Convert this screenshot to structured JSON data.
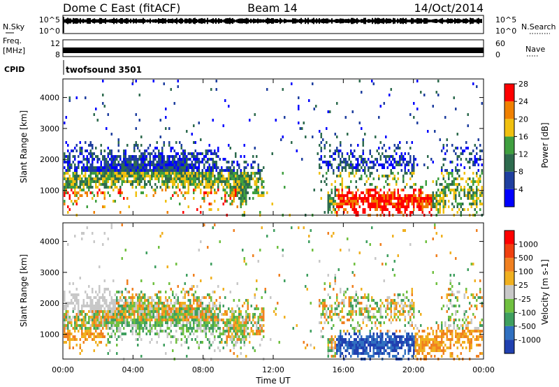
{
  "header": {
    "radar": "Dome C East (fitACF)",
    "beam": "Beam 14",
    "date": "14/Oct/2014"
  },
  "strips": {
    "nsky_label": "N.Sky",
    "nsky_ticks": [
      "10^5",
      "10^0"
    ],
    "nsearch_label": "N.Search",
    "nsearch_ticks": [
      "10^5",
      "10^0"
    ],
    "freq_label_1": "Freq.",
    "freq_label_2": "[MHz]",
    "freq_ticks": [
      "12",
      "8"
    ],
    "nave_label": "Nave",
    "nave_ticks": [
      "60",
      "0"
    ],
    "cpid_label": "CPID",
    "cpid_value": "twofsound 3501"
  },
  "chart_data": [
    {
      "type": "heatmap",
      "name": "power",
      "ylabel": "Slant Range [km]",
      "ylim": [
        200,
        4600
      ],
      "yticks": [
        "1000",
        "2000",
        "3000",
        "4000"
      ],
      "xlim": [
        0,
        24
      ],
      "colorbar_label": "Power [dB]",
      "colorbar_ticks": [
        "4",
        "8",
        "12",
        "16",
        "20",
        "24",
        "28"
      ],
      "colors": [
        "#0000ff",
        "#1f3f9f",
        "#2e6b4e",
        "#3f9f3f",
        "#f0c010",
        "#f08000",
        "#ff0000"
      ],
      "grid": false
    },
    {
      "type": "heatmap",
      "name": "velocity",
      "ylabel": "Slant Range [km]",
      "ylim": [
        200,
        4600
      ],
      "yticks": [
        "1000",
        "2000",
        "3000",
        "4000"
      ],
      "xlim": [
        0,
        24
      ],
      "colorbar_label": "Velocity [m s-1]",
      "colorbar_ticks": [
        "1000",
        "500",
        "100",
        "25",
        "-25",
        "-100",
        "-500",
        "-1000"
      ],
      "colors": [
        "#2040b0",
        "#3070c0",
        "#3f9f5f",
        "#70c040",
        "#c8c8c8",
        "#f0b020",
        "#f08020",
        "#f04010",
        "#ff0000"
      ],
      "grid": false
    }
  ],
  "xaxis": {
    "label": "Time UT",
    "ticks": [
      "00:00",
      "04:00",
      "08:00",
      "12:00",
      "16:00",
      "20:00",
      "00:00"
    ]
  }
}
